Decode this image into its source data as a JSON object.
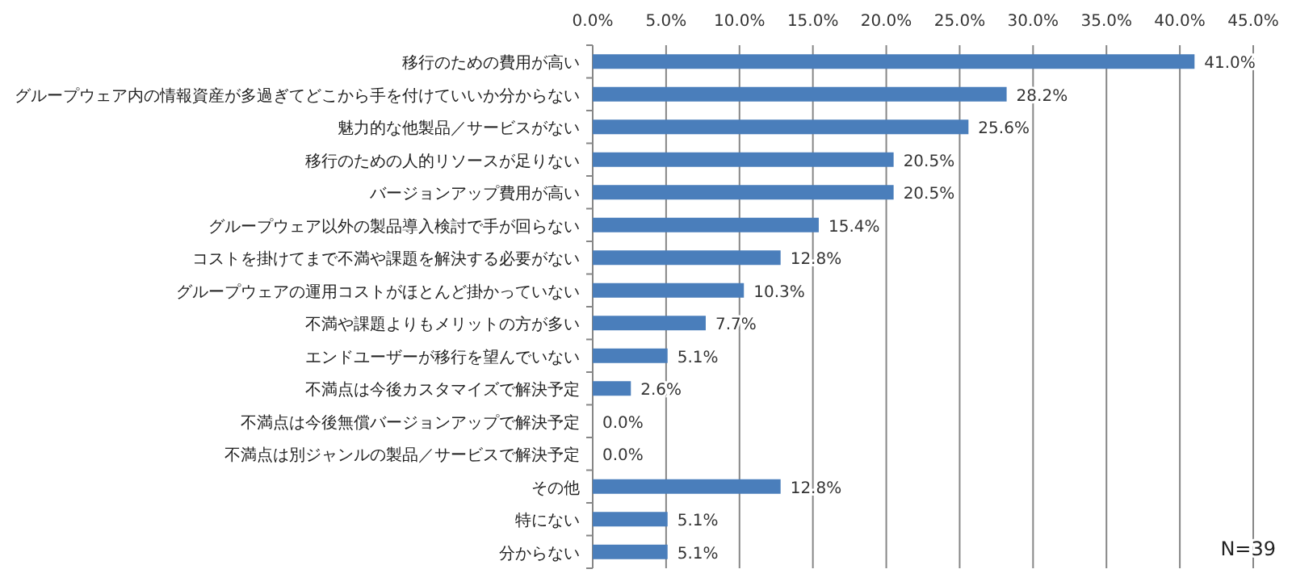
{
  "chart_data": {
    "type": "bar",
    "orientation": "horizontal",
    "categories": [
      "移行のための費用が高い",
      "グループウェア内の情報資産が多過ぎてどこから手を付けていいか分からない",
      "魅力的な他製品／サービスがない",
      "移行のための人的リソースが足りない",
      "バージョンアップ費用が高い",
      "グループウェア以外の製品導入検討で手が回らない",
      "コストを掛けてまで不満や課題を解決する必要がない",
      "グループウェアの運用コストがほとんど掛かっていない",
      "不満や課題よりもメリットの方が多い",
      "エンドユーザーが移行を望んでいない",
      "不満点は今後カスタマイズで解決予定",
      "不満点は今後無償バージョンアップで解決予定",
      "不満点は別ジャンルの製品／サービスで解決予定",
      "その他",
      "特にない",
      "分からない"
    ],
    "values": [
      41.0,
      28.2,
      25.6,
      20.5,
      20.5,
      15.4,
      12.8,
      10.3,
      7.7,
      5.1,
      2.6,
      0.0,
      0.0,
      12.8,
      5.1,
      5.1
    ],
    "value_labels": [
      "41.0%",
      "28.2%",
      "25.6%",
      "20.5%",
      "20.5%",
      "15.4%",
      "12.8%",
      "10.3%",
      "7.7%",
      "5.1%",
      "2.6%",
      "0.0%",
      "0.0%",
      "12.8%",
      "5.1%",
      "5.1%"
    ],
    "color": "#4a7ebb",
    "xlim": [
      0,
      45
    ],
    "xticks": [
      {
        "value": 0,
        "label": "0.0%"
      },
      {
        "value": 5,
        "label": "5.0%"
      },
      {
        "value": 10,
        "label": "10.0%"
      },
      {
        "value": 15,
        "label": "15.0%"
      },
      {
        "value": 20,
        "label": "20.0%"
      },
      {
        "value": 25,
        "label": "25.0%"
      },
      {
        "value": 30,
        "label": "30.0%"
      },
      {
        "value": 35,
        "label": "35.0%"
      },
      {
        "value": 40,
        "label": "40.0%"
      },
      {
        "value": 45,
        "label": "45.0%"
      }
    ],
    "grid": "x",
    "annotations": [
      "N=39"
    ]
  }
}
